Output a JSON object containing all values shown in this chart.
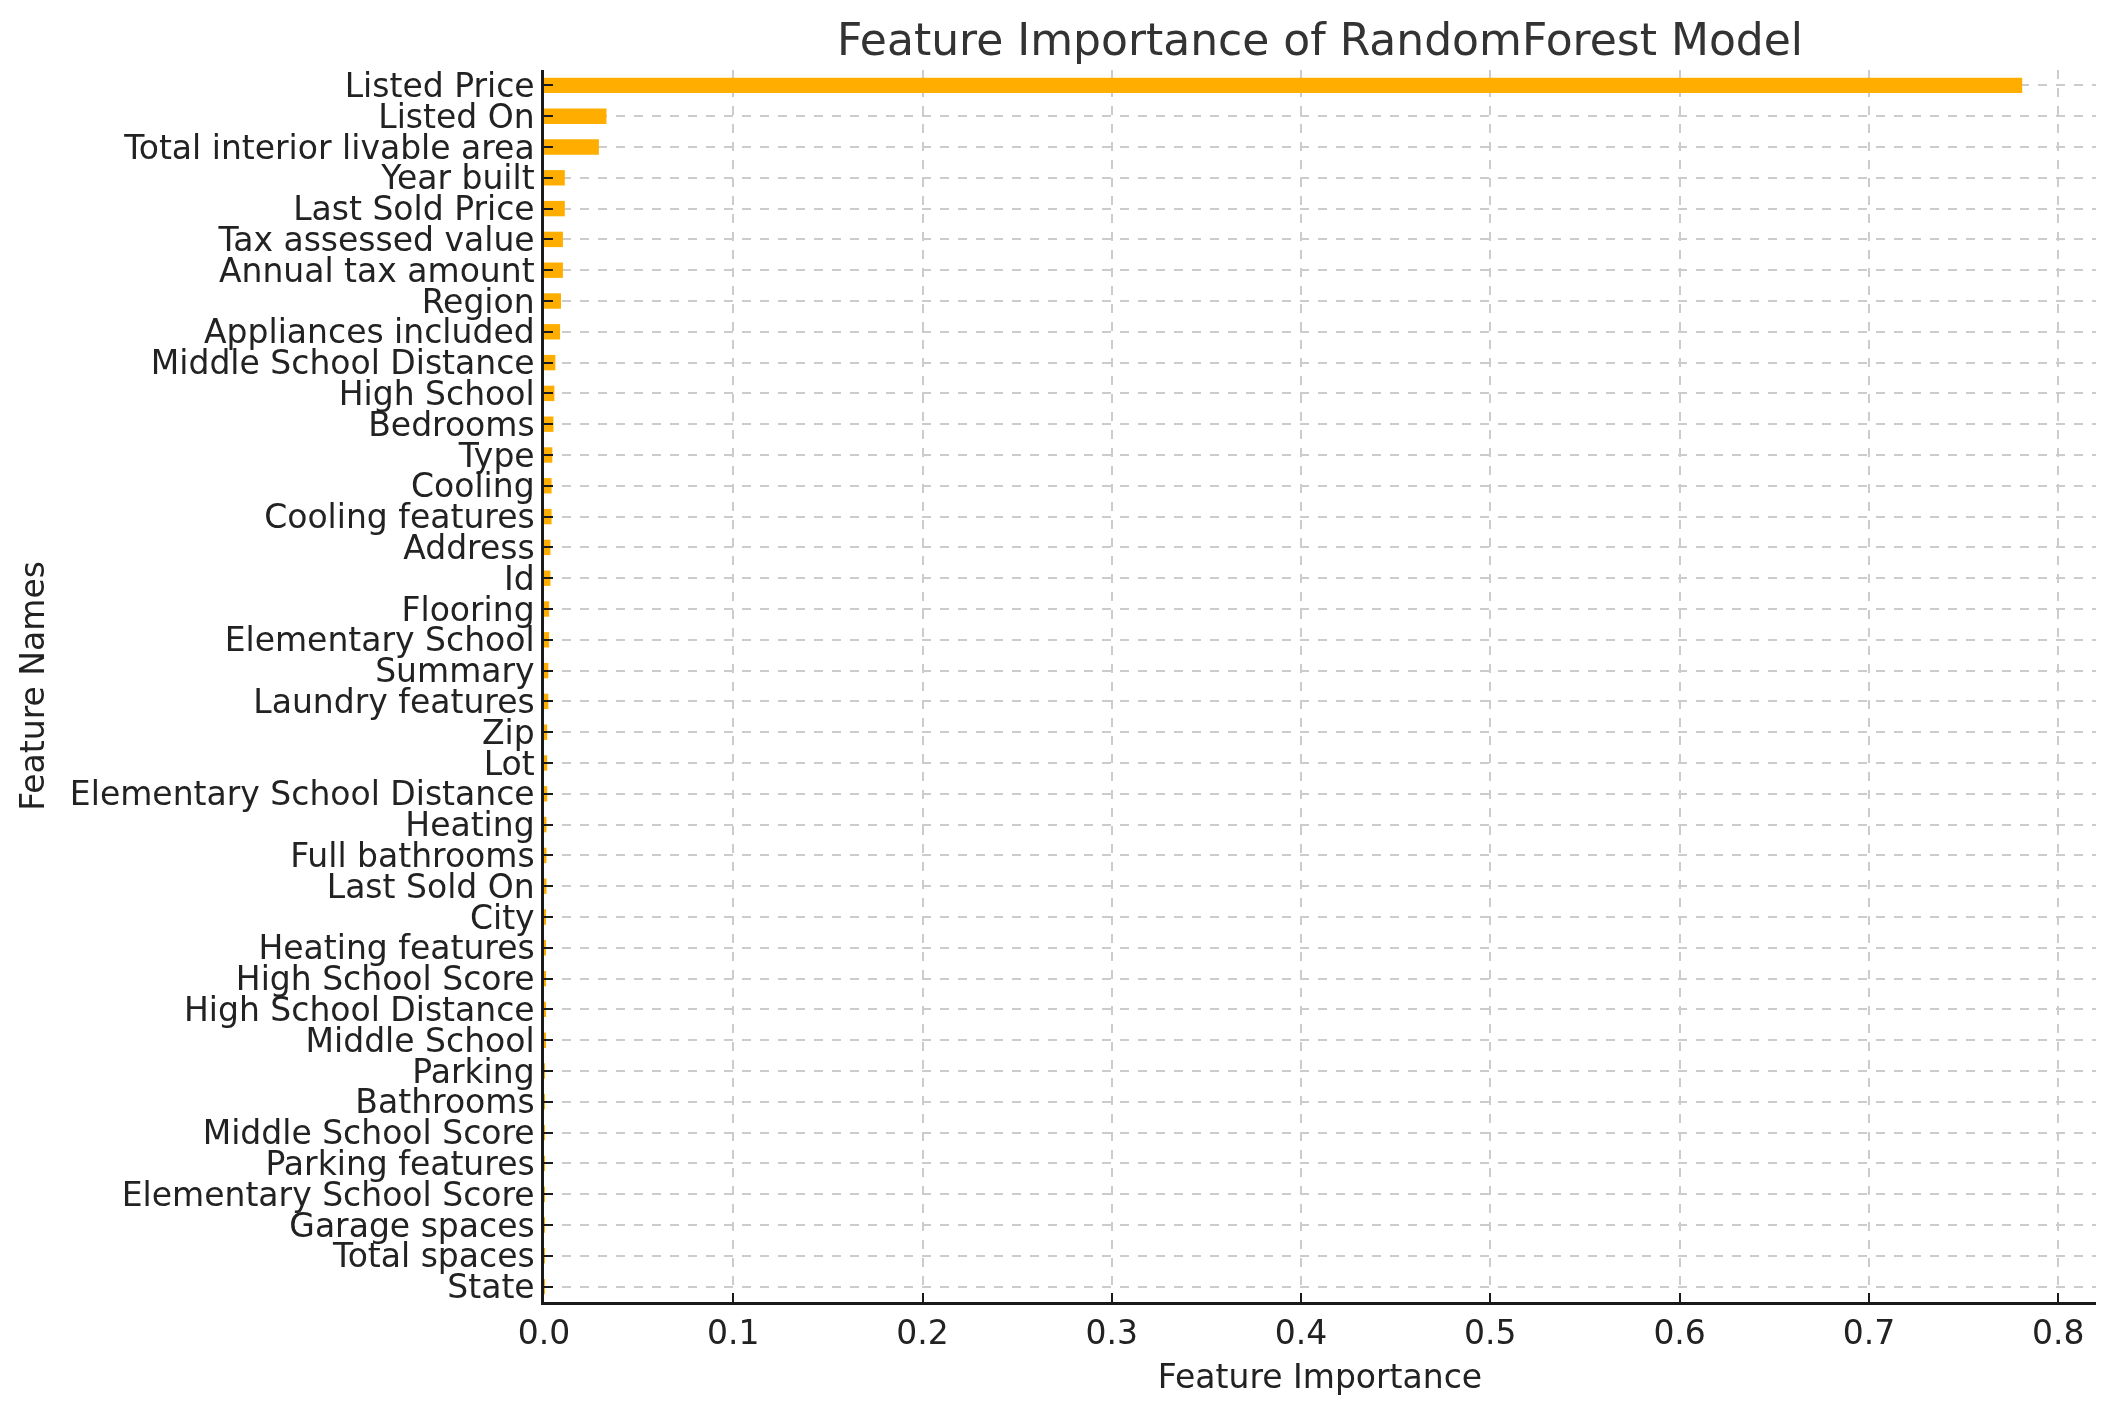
{
  "chart_data": {
    "type": "bar",
    "orientation": "horizontal",
    "title": "Feature Importance of RandomForest Model",
    "xlabel": "Feature Importance",
    "ylabel": "Feature Names",
    "categories": [
      "Listed Price",
      "Listed On",
      "Total interior livable area",
      "Year built",
      "Last Sold Price",
      "Tax assessed value",
      "Annual tax amount",
      "Region",
      "Appliances included",
      "Middle School Distance",
      "High School",
      "Bedrooms",
      "Type",
      "Cooling",
      "Cooling features",
      "Address",
      "Id",
      "Flooring",
      "Elementary School",
      "Summary",
      "Laundry features",
      "Zip",
      "Lot",
      "Elementary School Distance",
      "Heating",
      "Full bathrooms",
      "Last Sold On",
      "City",
      "Heating features",
      "High School Score",
      "High School Distance",
      "Middle School",
      "Parking",
      "Bathrooms",
      "Middle School Score",
      "Parking features",
      "Elementary School Score",
      "Garage spaces",
      "Total spaces",
      "State"
    ],
    "values": [
      0.781,
      0.033,
      0.029,
      0.011,
      0.011,
      0.01,
      0.01,
      0.009,
      0.0085,
      0.006,
      0.0055,
      0.005,
      0.0044,
      0.004,
      0.004,
      0.0034,
      0.0034,
      0.0027,
      0.0027,
      0.0023,
      0.0023,
      0.0017,
      0.0017,
      0.0017,
      0.0013,
      0.0013,
      0.0013,
      0.0006,
      0.0006,
      0.0006,
      0.0006,
      0.0006,
      0.0002,
      0.0002,
      0.0002,
      0.0002,
      0.0001,
      0.0001,
      0.0001,
      0.0001
    ],
    "color": "#ffae00",
    "xlim": [
      0,
      0.82
    ],
    "xticks": [
      {
        "value": 0,
        "label": "0.0"
      },
      0.1,
      0.2,
      0.3,
      0.4,
      0.5,
      0.6,
      0.7,
      0.8
    ],
    "grid": true
  }
}
